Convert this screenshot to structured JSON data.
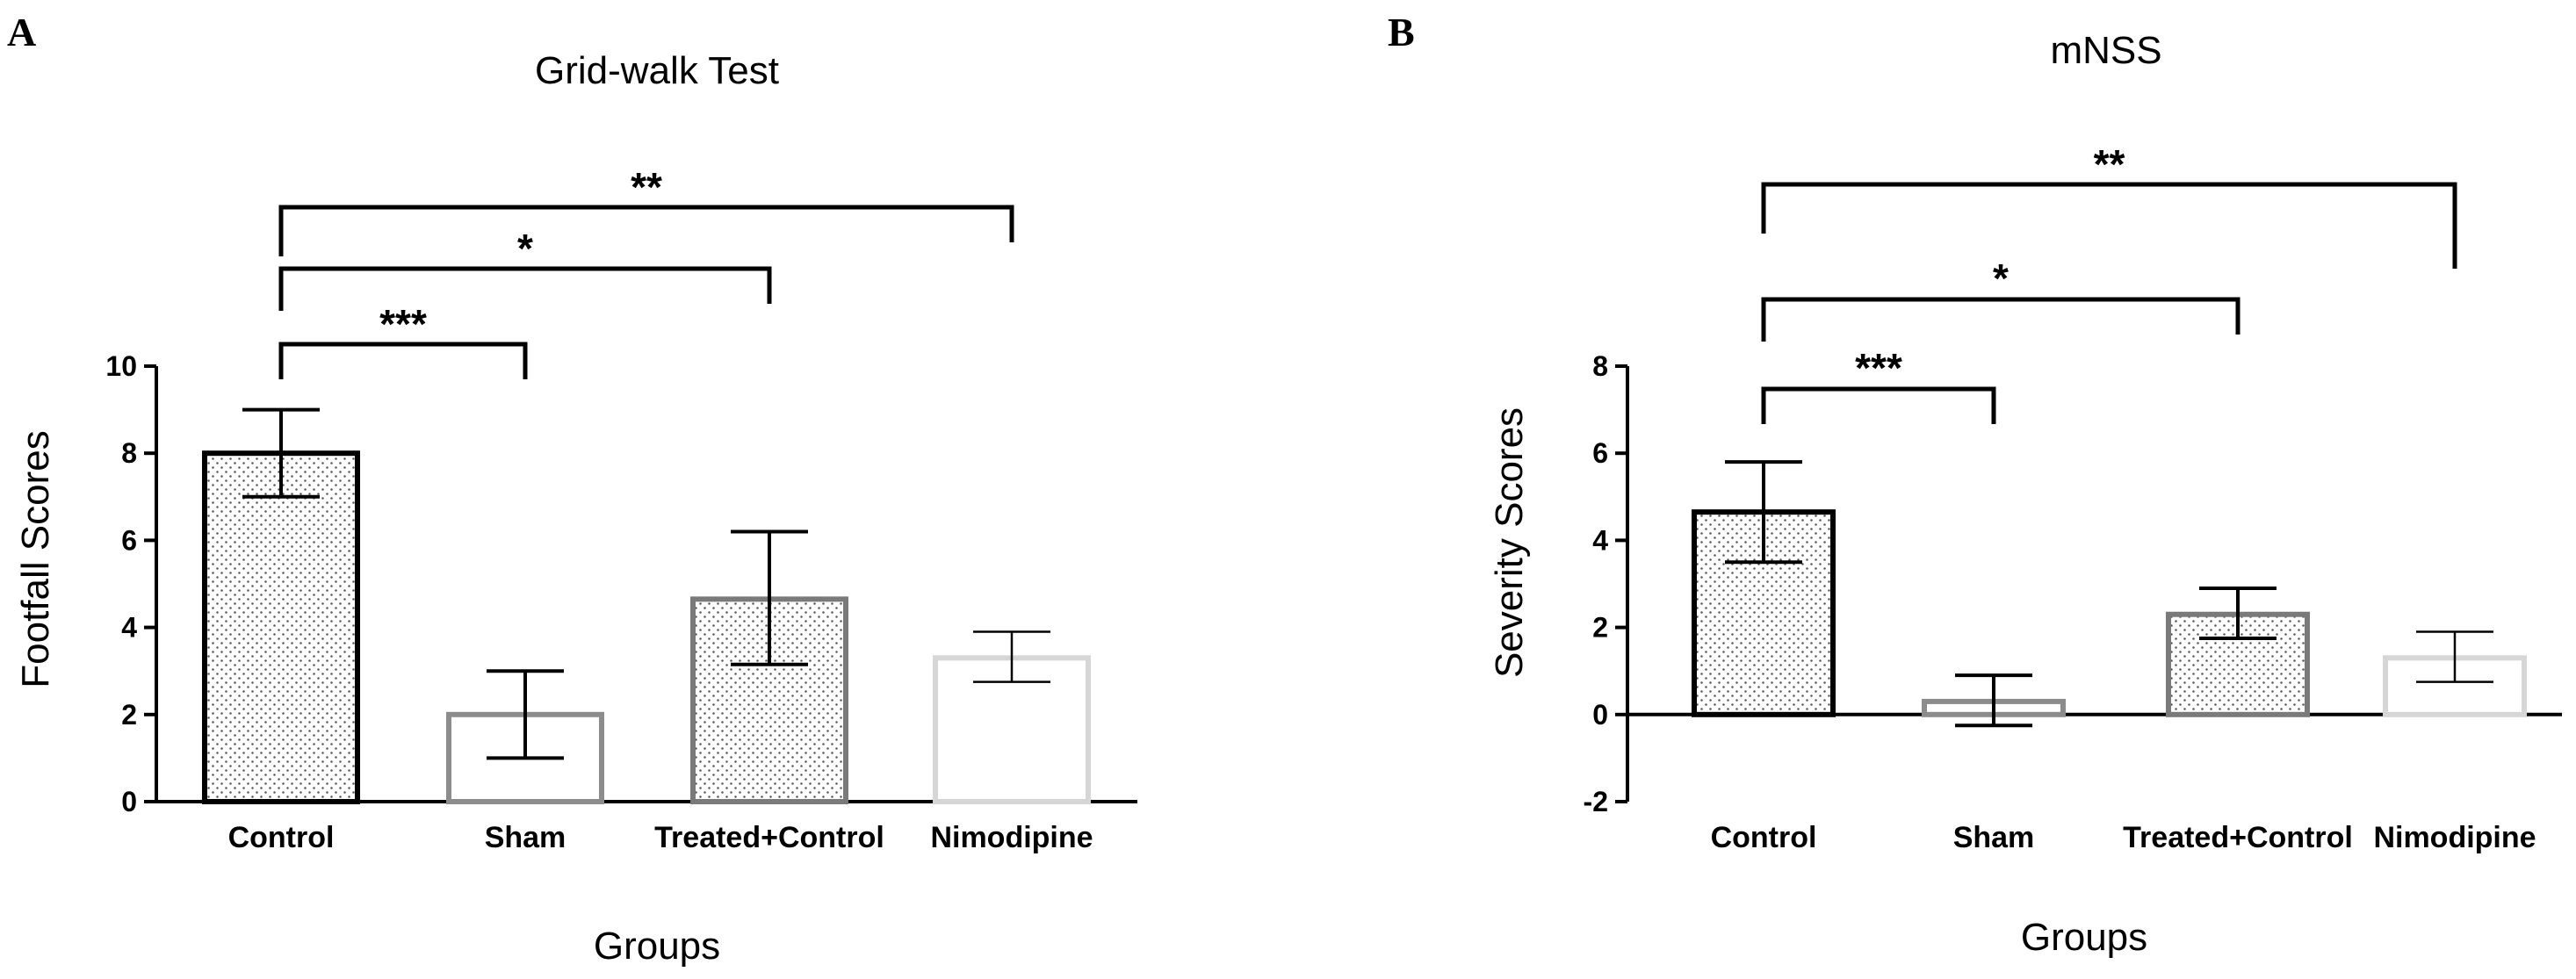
{
  "chart_data": [
    {
      "type": "bar",
      "panel_label": "A",
      "title": "Grid-walk Test",
      "xlabel": "Groups",
      "ylabel": "Footfall Scores",
      "categories": [
        "Control",
        "Sham",
        "Treated+Control",
        "Nimodipine"
      ],
      "values": [
        8.0,
        2.0,
        4.65,
        3.3
      ],
      "error_upper": [
        9.0,
        3.0,
        6.2,
        3.9
      ],
      "error_lower": [
        7.0,
        1.0,
        3.15,
        2.75
      ],
      "ylim": [
        0,
        10
      ],
      "yticks": [
        "0",
        "2",
        "4",
        "6",
        "8",
        "10"
      ],
      "bar_outline_colors": [
        "#000000",
        "#8c8c8c",
        "#7a7a7a",
        "#d6d6d6"
      ],
      "bar_fill": [
        "dotted",
        "none",
        "dotted",
        "none"
      ],
      "significance": [
        {
          "from": "Control",
          "to": "Sham",
          "label": "***"
        },
        {
          "from": "Control",
          "to": "Treated+Control",
          "label": "*"
        },
        {
          "from": "Control",
          "to": "Nimodipine",
          "label": "**"
        }
      ],
      "grid": false
    },
    {
      "type": "bar",
      "panel_label": "B",
      "title": "mNSS",
      "xlabel": "Groups",
      "ylabel": "Severity Scores",
      "categories": [
        "Control",
        "Sham",
        "Treated+Control",
        "Nimodipine"
      ],
      "values": [
        4.65,
        0.3,
        2.3,
        1.3
      ],
      "error_upper": [
        5.8,
        0.9,
        2.9,
        1.9
      ],
      "error_lower": [
        3.5,
        -0.25,
        1.75,
        0.75
      ],
      "ylim": [
        -2,
        8
      ],
      "yticks": [
        "-2",
        "0",
        "2",
        "4",
        "6",
        "8"
      ],
      "bar_outline_colors": [
        "#000000",
        "#8c8c8c",
        "#7a7a7a",
        "#d6d6d6"
      ],
      "bar_fill": [
        "dotted",
        "none",
        "dotted",
        "none"
      ],
      "significance": [
        {
          "from": "Control",
          "to": "Sham",
          "label": "***"
        },
        {
          "from": "Control",
          "to": "Treated+Control",
          "label": "*"
        },
        {
          "from": "Control",
          "to": "Nimodipine",
          "label": "**"
        }
      ],
      "grid": false
    }
  ]
}
